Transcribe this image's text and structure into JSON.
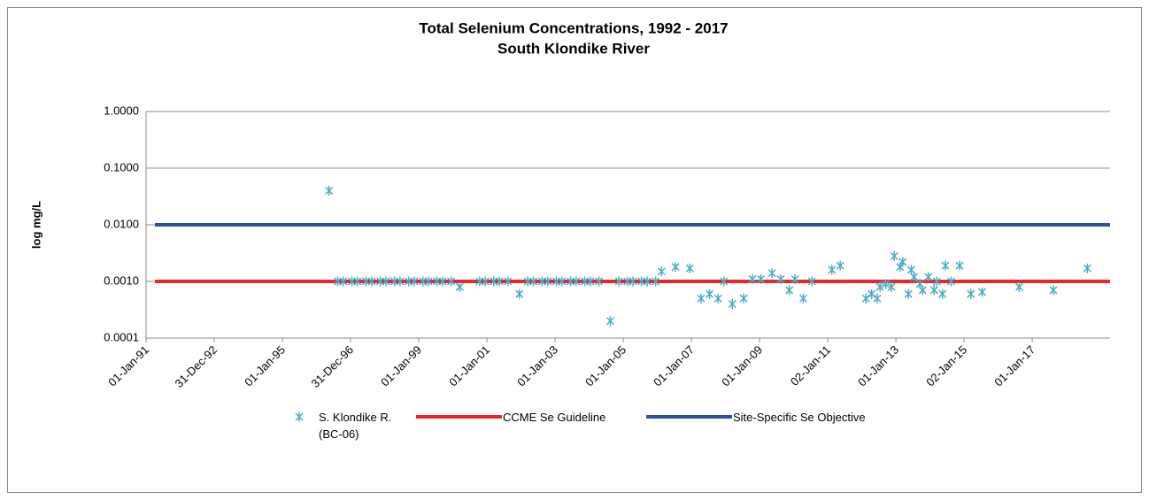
{
  "chart_data": {
    "type": "scatter",
    "title": "Total Selenium Concentrations, 1992 - 2017",
    "subtitle": "South Klondike River",
    "y_label": "log mg/L",
    "log_y": true,
    "grid": true,
    "legend": "bottom",
    "ylim": [
      0.0001,
      1
    ],
    "yticks": [
      {
        "value": 0.0001,
        "label": "0.0001"
      },
      {
        "value": 0.001,
        "label": "0.0010"
      },
      {
        "value": 0.01,
        "label": "0.0100"
      },
      {
        "value": 0.1,
        "label": "0.1000"
      },
      {
        "value": 1,
        "label": "1.0000"
      }
    ],
    "xlim": [
      "1991-01-01",
      "2019-04-15"
    ],
    "xticks": [
      {
        "value": "1991-01-01",
        "label": "01-Jan-91"
      },
      {
        "value": "1992-12-31",
        "label": "31-Dec-92"
      },
      {
        "value": "1995-01-01",
        "label": "01-Jan-95"
      },
      {
        "value": "1996-12-31",
        "label": "31-Dec-96"
      },
      {
        "value": "1999-01-01",
        "label": "01-Jan-99"
      },
      {
        "value": "2001-01-01",
        "label": "01-Jan-01"
      },
      {
        "value": "2003-01-01",
        "label": "01-Jan-03"
      },
      {
        "value": "2005-01-01",
        "label": "01-Jan-05"
      },
      {
        "value": "2007-01-01",
        "label": "01-Jan-07"
      },
      {
        "value": "2009-01-01",
        "label": "01-Jan-09"
      },
      {
        "value": "2011-01-02",
        "label": "02-Jan-11"
      },
      {
        "value": "2013-01-01",
        "label": "01-Jan-13"
      },
      {
        "value": "2015-01-02",
        "label": "02-Jan-15"
      },
      {
        "value": "2017-01-01",
        "label": "01-Jan-17"
      }
    ],
    "series": [
      {
        "name": "S. Klondike R. (BC-06)",
        "color": "#4bacc6",
        "x": [
          "1996-05-15",
          "1996-08-15",
          "1996-10-15",
          "1997-01-15",
          "1997-03-15",
          "1997-06-15",
          "1997-08-15",
          "1997-11-15",
          "1998-01-15",
          "1998-04-15",
          "1998-06-15",
          "1998-09-15",
          "1998-11-15",
          "1999-02-15",
          "1999-04-15",
          "1999-07-15",
          "1999-09-15",
          "1999-12-15",
          "2000-03-15",
          "2000-10-15",
          "2000-12-15",
          "2001-03-15",
          "2001-05-15",
          "2001-08-15",
          "2001-12-15",
          "2002-03-15",
          "2002-05-15",
          "2002-08-15",
          "2002-10-15",
          "2003-01-15",
          "2003-03-15",
          "2003-06-15",
          "2003-08-15",
          "2003-11-15",
          "2004-01-15",
          "2004-04-15",
          "2004-08-15",
          "2004-11-15",
          "2005-02-15",
          "2005-04-15",
          "2005-07-15",
          "2005-09-15",
          "2005-12-15",
          "2006-02-15",
          "2006-07-15",
          "2006-12-15",
          "2007-04-15",
          "2007-07-15",
          "2007-10-15",
          "2007-12-15",
          "2008-03-15",
          "2008-07-15",
          "2008-10-15",
          "2009-01-15",
          "2009-05-15",
          "2009-08-15",
          "2009-11-15",
          "2010-01-15",
          "2010-04-15",
          "2010-07-15",
          "2011-02-15",
          "2011-05-15",
          "2012-02-15",
          "2012-04-15",
          "2012-06-15",
          "2012-07-15",
          "2012-09-15",
          "2012-11-15",
          "2012-12-15",
          "2013-02-15",
          "2013-03-15",
          "2013-05-15",
          "2013-06-15",
          "2013-07-15",
          "2013-09-15",
          "2013-10-15",
          "2013-12-15",
          "2014-02-15",
          "2014-03-15",
          "2014-05-15",
          "2014-06-15",
          "2014-08-15",
          "2014-11-15",
          "2015-03-15",
          "2015-07-15",
          "2016-08-15",
          "2017-08-15",
          "2018-08-15"
        ],
        "values": [
          0.04,
          0.001,
          0.001,
          0.001,
          0.001,
          0.001,
          0.001,
          0.001,
          0.001,
          0.001,
          0.001,
          0.001,
          0.001,
          0.001,
          0.001,
          0.001,
          0.001,
          0.001,
          0.0008,
          0.001,
          0.001,
          0.001,
          0.001,
          0.001,
          0.0006,
          0.001,
          0.001,
          0.001,
          0.001,
          0.001,
          0.001,
          0.001,
          0.001,
          0.001,
          0.001,
          0.001,
          0.0002,
          0.001,
          0.001,
          0.001,
          0.001,
          0.001,
          0.001,
          0.0015,
          0.0018,
          0.0017,
          0.0005,
          0.0006,
          0.0005,
          0.001,
          0.0004,
          0.0005,
          0.0011,
          0.0011,
          0.0014,
          0.0011,
          0.0007,
          0.0011,
          0.0005,
          0.001,
          0.0016,
          0.0019,
          0.0005,
          0.0006,
          0.0005,
          0.0008,
          0.0009,
          0.0008,
          0.0028,
          0.0018,
          0.0022,
          0.0006,
          0.0016,
          0.0012,
          0.0009,
          0.0007,
          0.0012,
          0.0007,
          0.001,
          0.0006,
          0.0019,
          0.001,
          0.0019,
          0.0006,
          0.00065,
          0.0008,
          0.0007,
          0.0017
        ]
      }
    ],
    "reference_lines": [
      {
        "name": "CCME Se Guideline",
        "color": "#e8262b",
        "value": 0.001
      },
      {
        "name": "Site-Specific Se Objective",
        "color": "#2f4da0",
        "value": 0.01
      }
    ]
  }
}
